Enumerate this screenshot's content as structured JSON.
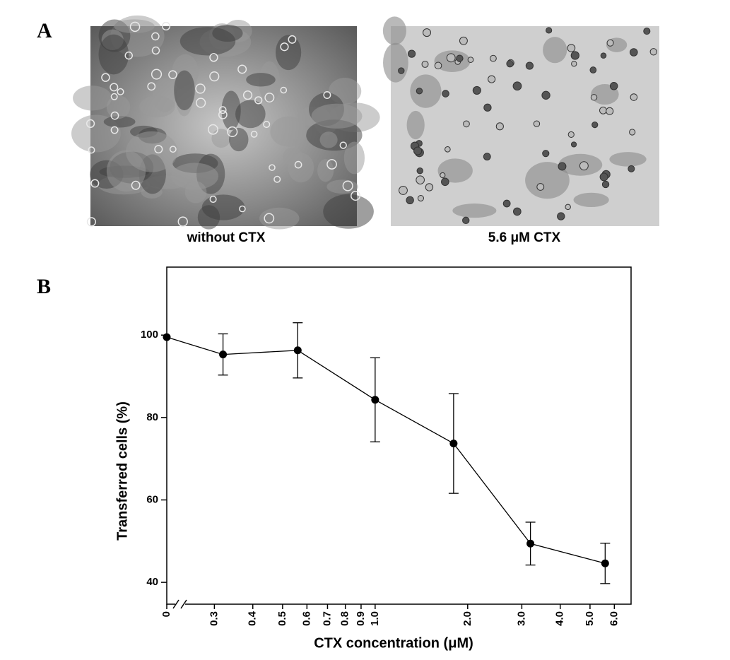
{
  "panel_a": {
    "letter": "A",
    "captions": [
      "without CTX",
      "5.6 μM CTX"
    ]
  },
  "panel_b_letter": "B",
  "chart_data": {
    "type": "line",
    "xlabel": "CTX concentration (μM)",
    "ylabel": "Transferred cells (%)",
    "x_scale": "log",
    "axis_break": true,
    "x": [
      0,
      0.32,
      0.56,
      1.0,
      1.8,
      3.2,
      5.6
    ],
    "series": [
      {
        "color": "#000000",
        "values": [
          99.5,
          95.3,
          96.3,
          84.3,
          73.7,
          49.4,
          44.6
        ],
        "errors": [
          0,
          5.0,
          6.7,
          10.2,
          12.1,
          5.2,
          4.9
        ]
      }
    ],
    "xlim": [
      0.21,
      6.8
    ],
    "xticks": [
      0,
      0.3,
      0.4,
      0.5,
      0.6,
      0.7,
      0.8,
      0.9,
      {
        "value": 1,
        "label": "1.0"
      },
      {
        "value": 2,
        "label": "2.0"
      },
      {
        "value": 3,
        "label": "3.0"
      },
      {
        "value": 4,
        "label": "4.0"
      },
      {
        "value": 5,
        "label": "5.0"
      },
      {
        "value": 6,
        "label": "6.0"
      }
    ],
    "ylim": [
      34.7,
      116.5
    ],
    "yticks": [
      40,
      60,
      80,
      100
    ],
    "grid": false
  }
}
